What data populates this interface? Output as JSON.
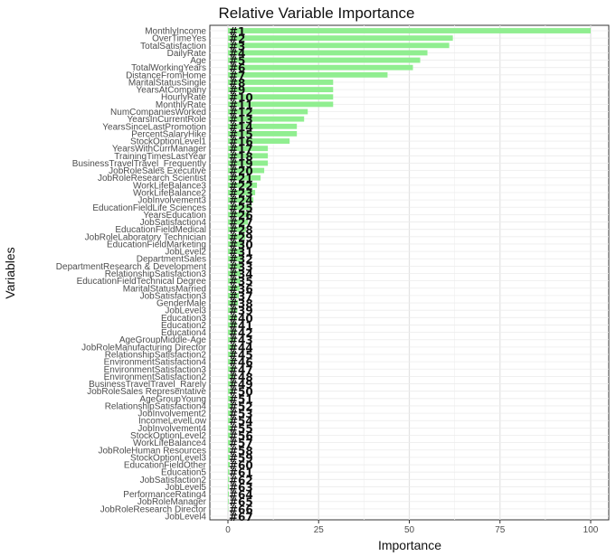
{
  "chart_data": {
    "type": "bar",
    "orientation": "horizontal",
    "title": "Relative Variable Importance",
    "xlabel": "Importance",
    "ylabel": "Variables",
    "xlim": [
      0,
      100
    ],
    "xticks": [
      "0",
      "25",
      "50",
      "75",
      "100"
    ],
    "grid": true,
    "bar_color": "#90ee90",
    "categories": [
      "MonthlyIncome",
      "OverTimeYes",
      "TotalSatisfaction",
      "DailyRate",
      "Age",
      "TotalWorkingYears",
      "DistanceFromHome",
      "MaritalStatusSingle",
      "YearsAtCompany",
      "HourlyRate",
      "MonthlyRate",
      "NumCompaniesWorked",
      "YearsInCurrentRole",
      "YearsSinceLastPromotion",
      "PercentSalaryHike",
      "StockOptionLevel1",
      "YearsWithCurrManager",
      "TrainingTimesLastYear",
      "BusinessTravelTravel_Frequently",
      "JobRoleSales Executive",
      "JobRoleResearch Scientist",
      "WorkLifeBalance3",
      "WorkLifeBalance2",
      "JobInvolvement3",
      "EducationFieldLife Sciences",
      "YearsEducation",
      "JobSatisfaction4",
      "EducationFieldMedical",
      "JobRoleLaboratory Technician",
      "EducationFieldMarketing",
      "JobLevel2",
      "DepartmentSales",
      "DepartmentResearch & Development",
      "RelationshipSatisfaction3",
      "EducationFieldTechnical Degree",
      "MaritalStatusMarried",
      "JobSatisfaction3",
      "GenderMale",
      "JobLevel3",
      "Education3",
      "Education2",
      "Education4",
      "AgeGroupMiddle-Age",
      "JobRoleManufacturing Director",
      "RelationshipSatisfaction2",
      "EnvironmentSatisfaction4",
      "EnvironmentSatisfaction3",
      "EnvironmentSatisfaction2",
      "BusinessTravelTravel_Rarely",
      "JobRoleSales Representative",
      "AgeGroupYoung",
      "RelationshipSatisfaction4",
      "JobInvolvement2",
      "IncomeLevelLow",
      "JobInvolvement4",
      "StockOptionLevel2",
      "WorkLifeBalance4",
      "JobRoleHuman Resources",
      "StockOptionLevel3",
      "EducationFieldOther",
      "Education5",
      "JobSatisfaction2",
      "JobLevel5",
      "PerformanceRating4",
      "JobRoleManager",
      "JobRoleResearch Director",
      "JobLevel4"
    ],
    "ranks": [
      "#1",
      "#2",
      "#3",
      "#4",
      "#5",
      "#6",
      "#7",
      "#8",
      "#9",
      "#10",
      "#11",
      "#12",
      "#13",
      "#14",
      "#15",
      "#16",
      "#17",
      "#18",
      "#19",
      "#20",
      "#21",
      "#22",
      "#23",
      "#24",
      "#25",
      "#26",
      "#27",
      "#28",
      "#29",
      "#30",
      "#31",
      "#32",
      "#33",
      "#34",
      "#35",
      "#36",
      "#37",
      "#38",
      "#39",
      "#40",
      "#41",
      "#42",
      "#43",
      "#44",
      "#45",
      "#46",
      "#47",
      "#48",
      "#49",
      "#50",
      "#51",
      "#52",
      "#53",
      "#54",
      "#55",
      "#56",
      "#57",
      "#58",
      "#59",
      "#60",
      "#61",
      "#62",
      "#63",
      "#64",
      "#65",
      "#66",
      "#67"
    ],
    "values": [
      100,
      62,
      61,
      55,
      53,
      51,
      44,
      29,
      29,
      29,
      29,
      22,
      21,
      19,
      19,
      17,
      11,
      11,
      11,
      10,
      9,
      8,
      7.5,
      7,
      6.5,
      6,
      5.5,
      5,
      4.8,
      4.5,
      4.2,
      4,
      3.8,
      3.6,
      3.4,
      3.2,
      3,
      2.8,
      2.6,
      2.5,
      2.4,
      2.3,
      2.2,
      2.1,
      2,
      1.9,
      1.8,
      1.7,
      1.6,
      1.5,
      1.4,
      1.3,
      1.2,
      1.1,
      1,
      0.9,
      0.8,
      0.7,
      0.6,
      0.5,
      0.4,
      0.35,
      0.3,
      0.25,
      0.2,
      0.1,
      0
    ]
  }
}
